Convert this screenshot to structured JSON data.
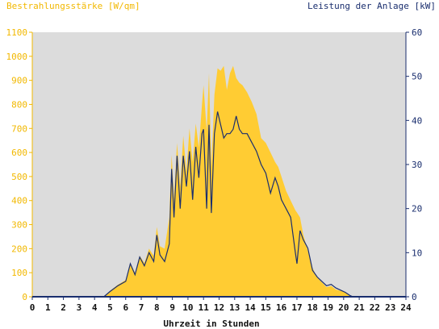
{
  "chart_data": {
    "type": "area",
    "left_axis_label": "Bestrahlungsstärke [W/qm]",
    "right_axis_label": "Leistung der Anlage [kW]",
    "xlabel": "Uhrzeit in Stunden",
    "xlim": [
      0,
      24
    ],
    "ylim_left": [
      0,
      1100
    ],
    "ylim_right": [
      0,
      60
    ],
    "x_ticks": [
      0,
      1,
      2,
      3,
      4,
      5,
      6,
      7,
      8,
      9,
      10,
      11,
      12,
      13,
      14,
      15,
      16,
      17,
      18,
      19,
      20,
      21,
      22,
      23,
      24
    ],
    "y_ticks_left": [
      0,
      100,
      200,
      300,
      400,
      500,
      600,
      700,
      800,
      900,
      1000,
      1100
    ],
    "y_ticks_right": [
      0,
      10,
      20,
      30,
      40,
      50,
      60
    ],
    "grid": false,
    "colors": {
      "background": "#dcdcdc",
      "irradiance_fill": "#ffcc33",
      "power_line": "#1a2e6e",
      "left_axis": "#f2b800",
      "right_axis": "#1a2e6e"
    },
    "series": [
      {
        "name": "Bestrahlungsstärke",
        "axis": "left",
        "x": [
          0,
          4.6,
          5.0,
          5.5,
          6.0,
          6.3,
          6.6,
          6.9,
          7.2,
          7.5,
          7.8,
          8.0,
          8.2,
          8.5,
          8.8,
          8.95,
          9.1,
          9.3,
          9.5,
          9.7,
          9.9,
          10.1,
          10.3,
          10.5,
          10.7,
          10.9,
          11.0,
          11.2,
          11.35,
          11.5,
          11.7,
          11.9,
          12.1,
          12.3,
          12.5,
          12.7,
          12.9,
          13.1,
          13.3,
          13.5,
          13.8,
          14.1,
          14.4,
          14.7,
          15.0,
          15.3,
          15.6,
          15.8,
          16.0,
          16.3,
          16.6,
          16.9,
          17.0,
          17.2,
          17.4,
          17.7,
          18.0,
          18.3,
          18.6,
          18.9,
          19.2,
          19.5,
          19.8,
          20.1,
          20.4,
          20.6,
          24
        ],
        "y": [
          0,
          0,
          25,
          50,
          70,
          140,
          100,
          170,
          140,
          200,
          170,
          290,
          210,
          200,
          330,
          590,
          410,
          640,
          460,
          670,
          520,
          700,
          560,
          720,
          620,
          800,
          880,
          690,
          930,
          540,
          840,
          950,
          940,
          960,
          860,
          930,
          960,
          910,
          890,
          880,
          850,
          810,
          760,
          660,
          640,
          600,
          560,
          540,
          500,
          440,
          400,
          360,
          350,
          330,
          260,
          190,
          120,
          80,
          60,
          40,
          45,
          30,
          25,
          20,
          5,
          0,
          0
        ]
      },
      {
        "name": "Leistung der Anlage",
        "axis": "right",
        "x": [
          0,
          4.6,
          5.0,
          5.5,
          6.0,
          6.3,
          6.6,
          6.9,
          7.2,
          7.5,
          7.8,
          8.0,
          8.2,
          8.5,
          8.8,
          8.95,
          9.1,
          9.3,
          9.5,
          9.7,
          9.9,
          10.1,
          10.3,
          10.5,
          10.7,
          10.9,
          11.0,
          11.2,
          11.35,
          11.5,
          11.7,
          11.9,
          12.1,
          12.3,
          12.5,
          12.7,
          12.9,
          13.1,
          13.3,
          13.5,
          13.8,
          14.1,
          14.4,
          14.7,
          15.0,
          15.3,
          15.6,
          15.8,
          16.0,
          16.3,
          16.6,
          16.9,
          17.0,
          17.2,
          17.4,
          17.7,
          18.0,
          18.3,
          18.6,
          18.9,
          19.2,
          19.5,
          19.8,
          20.1,
          20.4,
          20.6,
          24
        ],
        "y": [
          0,
          0,
          1.2,
          2.5,
          3.5,
          7.5,
          5,
          9,
          7,
          10,
          8,
          14,
          9.5,
          8,
          12,
          29,
          18,
          32,
          20,
          32,
          25,
          33,
          22,
          34,
          27,
          37,
          38,
          20,
          39,
          19,
          37,
          42,
          39,
          36,
          37,
          37,
          38,
          41,
          38,
          37,
          37,
          35,
          33,
          30,
          28,
          23.5,
          27,
          25,
          22,
          20,
          18,
          10,
          7.5,
          15,
          13,
          11,
          6,
          4.5,
          3.5,
          2.5,
          2.8,
          2,
          1.5,
          1.0,
          0.3,
          0,
          0
        ]
      }
    ]
  }
}
